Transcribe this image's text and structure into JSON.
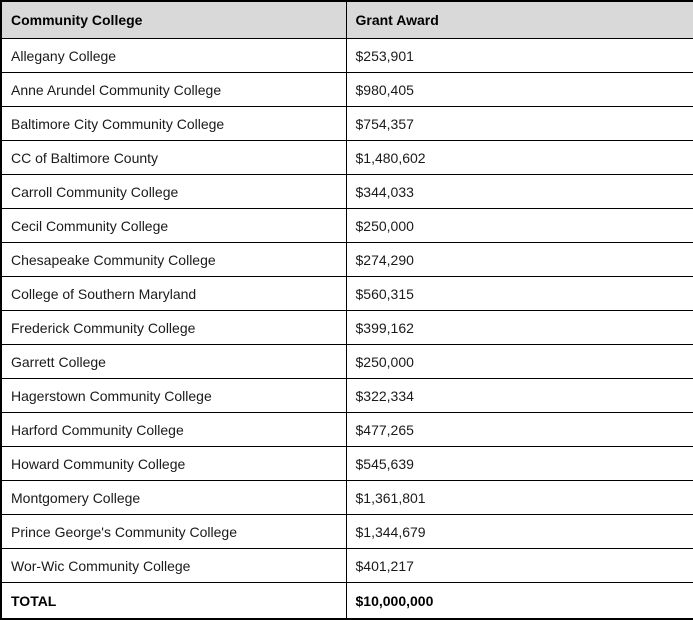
{
  "colors": {
    "header_background": "#d9d9d9",
    "border": "#000000",
    "text": "#1a1a1a"
  },
  "table": {
    "headers": [
      "Community College",
      "Grant Award"
    ],
    "rows": [
      {
        "college": "Allegany College",
        "award": "$253,901"
      },
      {
        "college": "Anne Arundel Community College",
        "award": "$980,405"
      },
      {
        "college": "Baltimore City Community College",
        "award": "$754,357"
      },
      {
        "college": "CC of Baltimore County",
        "award": "$1,480,602"
      },
      {
        "college": "Carroll Community College",
        "award": "$344,033"
      },
      {
        "college": "Cecil Community College",
        "award": "$250,000"
      },
      {
        "college": "Chesapeake Community College",
        "award": "$274,290"
      },
      {
        "college": "College of Southern Maryland",
        "award": "$560,315"
      },
      {
        "college": "Frederick Community College",
        "award": "$399,162"
      },
      {
        "college": "Garrett College",
        "award": "$250,000"
      },
      {
        "college": "Hagerstown Community College",
        "award": "$322,334"
      },
      {
        "college": "Harford Community College",
        "award": "$477,265"
      },
      {
        "college": "Howard Community College",
        "award": "$545,639"
      },
      {
        "college": "Montgomery College",
        "award": "$1,361,801"
      },
      {
        "college": "Prince George's Community College",
        "award": "$1,344,679"
      },
      {
        "college": "Wor-Wic Community College",
        "award": "$401,217"
      }
    ],
    "total": {
      "label": "TOTAL",
      "award": "$10,000,000"
    }
  }
}
